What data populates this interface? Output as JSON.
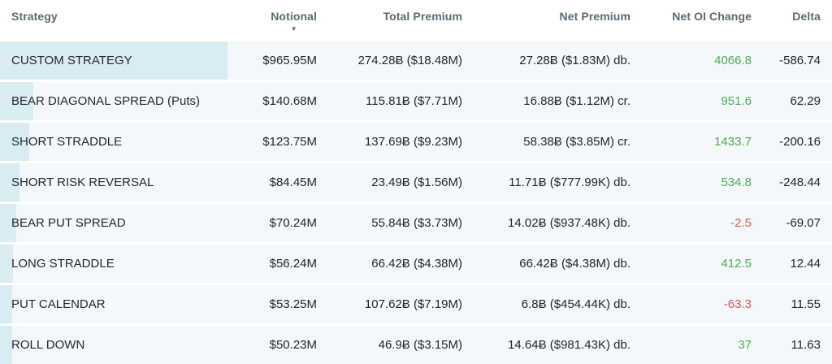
{
  "colors": {
    "positive": "#4caf50",
    "negative": "#ef5350",
    "notional_bar": "#d9ecf4",
    "row_background": "#f4f8fa",
    "header_text": "#5e6a70",
    "body_text": "#20292e"
  },
  "icons": {
    "sort_desc": "▼"
  },
  "table": {
    "columns": [
      {
        "key": "strategy",
        "label": "Strategy",
        "align": "left"
      },
      {
        "key": "notional",
        "label": "Notional",
        "align": "right",
        "sorted": "desc"
      },
      {
        "key": "total_premium",
        "label": "Total Premium",
        "align": "right"
      },
      {
        "key": "net_premium",
        "label": "Net Premium",
        "align": "right"
      },
      {
        "key": "net_oi_change",
        "label": "Net OI Change",
        "align": "right"
      },
      {
        "key": "delta",
        "label": "Delta",
        "align": "right"
      }
    ],
    "rows": [
      {
        "strategy": "CUSTOM STRATEGY",
        "notional": "$965.95M",
        "total_premium": "274.28₿ ($18.48M)",
        "net_premium": "27.28₿ ($1.83M) db.",
        "net_oi_change": "4066.8",
        "net_oi_color": "#4caf50",
        "delta": "-586.74",
        "bar_pct": 100
      },
      {
        "strategy": "BEAR DIAGONAL SPREAD (Puts)",
        "notional": "$140.68M",
        "total_premium": "115.81₿ ($7.71M)",
        "net_premium": "16.88₿ ($1.12M) cr.",
        "net_oi_change": "951.6",
        "net_oi_color": "#4caf50",
        "delta": "62.29",
        "bar_pct": 14.6
      },
      {
        "strategy": "SHORT STRADDLE",
        "notional": "$123.75M",
        "total_premium": "137.69₿ ($9.23M)",
        "net_premium": "58.38₿ ($3.85M) cr.",
        "net_oi_change": "1433.7",
        "net_oi_color": "#4caf50",
        "delta": "-200.16",
        "bar_pct": 12.8
      },
      {
        "strategy": "SHORT RISK REVERSAL",
        "notional": "$84.45M",
        "total_premium": "23.49₿ ($1.56M)",
        "net_premium": "11.71₿ ($777.99K) db.",
        "net_oi_change": "534.8",
        "net_oi_color": "#4caf50",
        "delta": "-248.44",
        "bar_pct": 8.7
      },
      {
        "strategy": "BEAR PUT SPREAD",
        "notional": "$70.24M",
        "total_premium": "55.84₿ ($3.73M)",
        "net_premium": "14.02₿ ($937.48K) db.",
        "net_oi_change": "-2.5",
        "net_oi_color": "#ef5350",
        "delta": "-69.07",
        "bar_pct": 7.3
      },
      {
        "strategy": "LONG STRADDLE",
        "notional": "$56.24M",
        "total_premium": "66.42₿ ($4.38M)",
        "net_premium": "66.42₿ ($4.38M) db.",
        "net_oi_change": "412.5",
        "net_oi_color": "#4caf50",
        "delta": "12.44",
        "bar_pct": 5.8
      },
      {
        "strategy": "PUT CALENDAR",
        "notional": "$53.25M",
        "total_premium": "107.62₿ ($7.19M)",
        "net_premium": "6.8₿ ($454.44K) db.",
        "net_oi_change": "-63.3",
        "net_oi_color": "#ef5350",
        "delta": "11.55",
        "bar_pct": 5.5
      },
      {
        "strategy": "ROLL DOWN",
        "notional": "$50.23M",
        "total_premium": "46.9₿ ($3.15M)",
        "net_premium": "14.64₿ ($981.43K) db.",
        "net_oi_change": "37",
        "net_oi_color": "#4caf50",
        "delta": "11.63",
        "bar_pct": 5.2
      }
    ]
  }
}
